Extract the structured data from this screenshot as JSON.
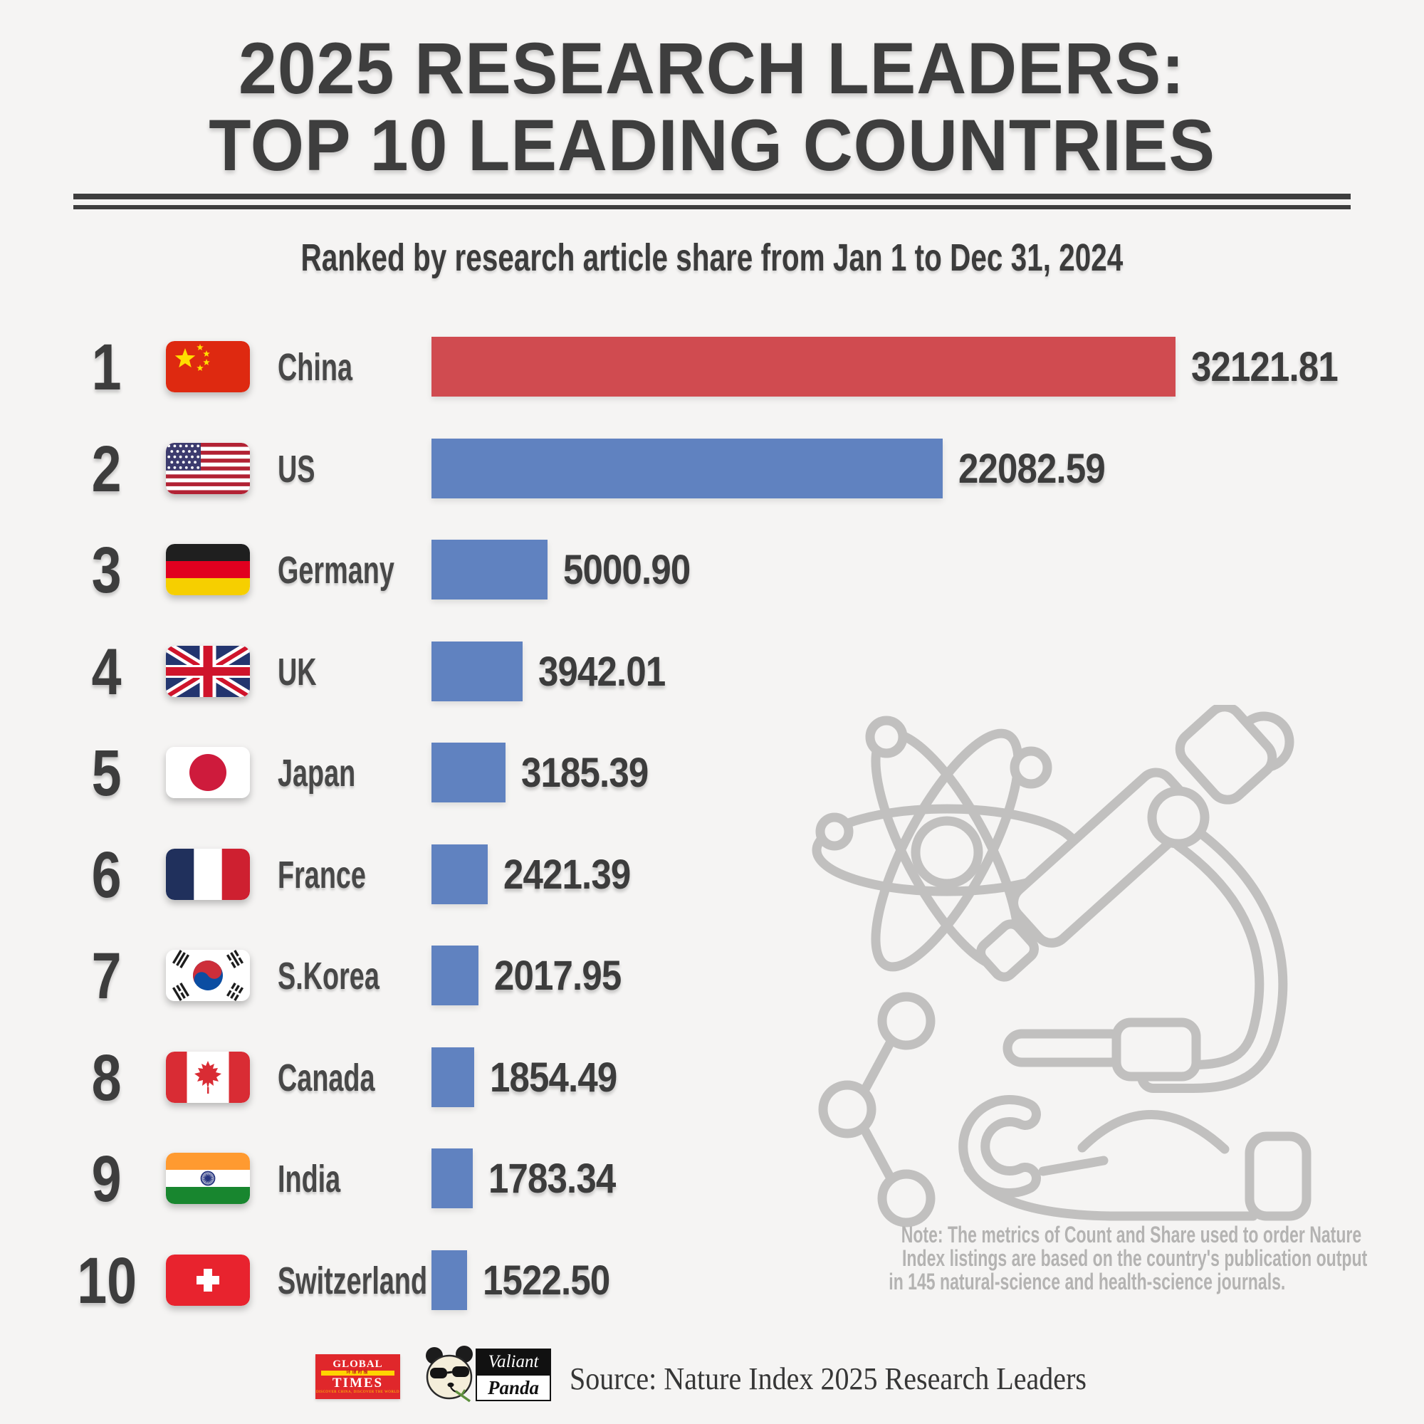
{
  "header": {
    "title_line1": "2025 RESEARCH LEADERS:",
    "title_line2": "TOP 10 LEADING COUNTRIES",
    "subtitle": "Ranked by research article share from Jan 1 to Dec 31, 2024"
  },
  "chart_data": {
    "type": "bar",
    "orientation": "horizontal",
    "title": "2025 Research Leaders: Top 10 Leading Countries",
    "subtitle": "Ranked by research article share from Jan 1 to Dec 31, 2024",
    "categories": [
      "China",
      "US",
      "Germany",
      "UK",
      "Japan",
      "France",
      "S.Korea",
      "Canada",
      "India",
      "Switzerland"
    ],
    "values": [
      32121.81,
      22082.59,
      5000.9,
      3942.01,
      3185.39,
      2421.39,
      2017.95,
      1854.49,
      1783.34,
      1522.5
    ],
    "value_labels": [
      "32121.81",
      "22082.59",
      "5000.90",
      "3942.01",
      "3185.39",
      "2421.39",
      "2017.95",
      "1854.49",
      "1783.34",
      "1522.50"
    ],
    "ranks": [
      1,
      2,
      3,
      4,
      5,
      6,
      7,
      8,
      9,
      10
    ],
    "xlim": [
      0,
      32121.81
    ],
    "grid": false,
    "legend": false,
    "bar_color_first": "#d04b50",
    "bar_color_rest": "#6082c0"
  },
  "main": {
    "rows": [
      {
        "rank": "1",
        "country": "China",
        "value": "32121.81",
        "value_num": 32121.81,
        "flag": "china-flag",
        "bar_color": "#d04b50"
      },
      {
        "rank": "2",
        "country": "US",
        "value": "22082.59",
        "value_num": 22082.59,
        "flag": "us-flag",
        "bar_color": "#6082c0"
      },
      {
        "rank": "3",
        "country": "Germany",
        "value": "5000.90",
        "value_num": 5000.9,
        "flag": "germany-flag",
        "bar_color": "#6082c0"
      },
      {
        "rank": "4",
        "country": "UK",
        "value": "3942.01",
        "value_num": 3942.01,
        "flag": "uk-flag",
        "bar_color": "#6082c0"
      },
      {
        "rank": "5",
        "country": "Japan",
        "value": "3185.39",
        "value_num": 3185.39,
        "flag": "japan-flag",
        "bar_color": "#6082c0"
      },
      {
        "rank": "6",
        "country": "France",
        "value": "2421.39",
        "value_num": 2421.39,
        "flag": "france-flag",
        "bar_color": "#6082c0"
      },
      {
        "rank": "7",
        "country": "S.Korea",
        "value": "2017.95",
        "value_num": 2017.95,
        "flag": "skorea-flag",
        "bar_color": "#6082c0"
      },
      {
        "rank": "8",
        "country": "Canada",
        "value": "1854.49",
        "value_num": 1854.49,
        "flag": "canada-flag",
        "bar_color": "#6082c0"
      },
      {
        "rank": "9",
        "country": "India",
        "value": "1783.34",
        "value_num": 1783.34,
        "flag": "india-flag",
        "bar_color": "#6082c0"
      },
      {
        "rank": "10",
        "country": "Switzerland",
        "value": "1522.50",
        "value_num": 1522.5,
        "flag": "switzerland-flag",
        "bar_color": "#6082c0"
      }
    ]
  },
  "note": {
    "line1": "Note: The metrics of Count and Share used to order Nature",
    "line2": "Index listings are based on the country's publication output",
    "line3": "in 145 natural-science and health-science journals."
  },
  "footer": {
    "source": "Source: Nature Index 2025 Research Leaders",
    "global_times": {
      "line1": "GLOBAL",
      "line2": "环球时报",
      "line3": "TIMES",
      "tagline": "DISCOVER CHINA, DISCOVER THE WORLD"
    },
    "valiant_panda": {
      "line1": "Valiant",
      "line2": "Panda"
    }
  },
  "colors": {
    "background": "#f5f4f3",
    "title_text": "#3e3e3e",
    "bar_red": "#d04b50",
    "bar_blue": "#6082c0",
    "note_text": "#b4b3b2",
    "watermark": "#c1c0bf"
  }
}
